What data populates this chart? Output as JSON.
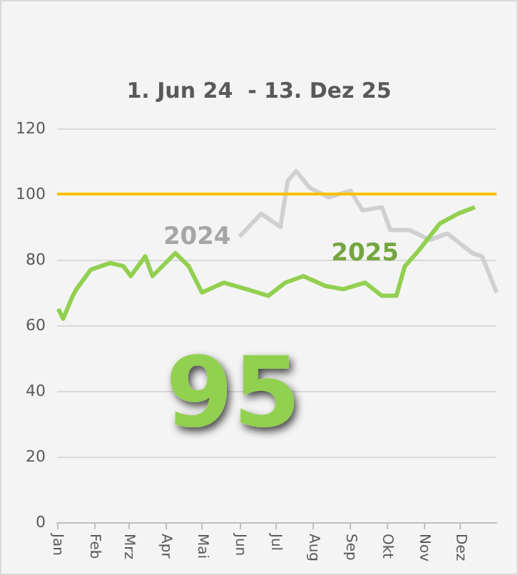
{
  "chart_data": {
    "type": "line",
    "subtitle": "1. Jun 24  - 13. Dez 25",
    "annotations": [
      "95"
    ],
    "xlim": [
      "--01-01",
      "--12-31"
    ],
    "xticks": [
      {
        "value": "--01-01",
        "label": "Jan"
      },
      {
        "value": "--02-01",
        "label": "Feb"
      },
      {
        "value": "--03-01",
        "label": "Mrz"
      },
      {
        "value": "--04-01",
        "label": "Apr"
      },
      {
        "value": "--05-01",
        "label": "Mai"
      },
      {
        "value": "--06-01",
        "label": "Jun"
      },
      {
        "value": "--07-01",
        "label": "Jul"
      },
      {
        "value": "--08-01",
        "label": "Aug"
      },
      {
        "value": "--09-01",
        "label": "Sep"
      },
      {
        "value": "--10-01",
        "label": "Okt"
      },
      {
        "value": "--11-01",
        "label": "Nov"
      },
      {
        "value": "--12-01",
        "label": "Dez"
      }
    ],
    "ylim": [
      0,
      120
    ],
    "yticks": [
      0,
      20,
      40,
      60,
      80,
      100,
      120
    ],
    "grid": "y",
    "legend": false,
    "marker": "none",
    "line_style": "solid",
    "ref_lines": [
      {
        "axis": "y",
        "value": 100,
        "color": "#ffc000"
      }
    ],
    "series": [
      {
        "name": "2024",
        "color": "#d0d0d0",
        "x": [
          "--06-01",
          "--06-19",
          "--07-05",
          "--07-11",
          "--07-18",
          "--07-29",
          "--08-14",
          "--09-01",
          "--09-11",
          "--09-27",
          "--10-04",
          "--10-20",
          "--11-06",
          "--11-20",
          "--12-11",
          "--12-19",
          "--12-31"
        ],
        "values": [
          87,
          94,
          90,
          104,
          107,
          102,
          99,
          101,
          95,
          96,
          89,
          89,
          86,
          88,
          82,
          81,
          70
        ]
      },
      {
        "name": "2025",
        "color": "#92d050",
        "x": [
          "--01-02",
          "--01-06",
          "--01-14",
          "--01-17",
          "--01-29",
          "--02-14",
          "--02-25",
          "--03-03",
          "--03-15",
          "--03-21",
          "--04-09",
          "--04-20",
          "--05-01",
          "--05-19",
          "--06-07",
          "--06-25",
          "--07-09",
          "--07-24",
          "--08-11",
          "--08-26",
          "--09-13",
          "--09-27",
          "--10-09",
          "--10-16",
          "--10-28",
          "--11-14",
          "--11-29",
          "--12-13"
        ],
        "values": [
          65,
          62,
          69,
          71,
          77,
          79,
          78,
          75,
          81,
          75,
          82,
          78,
          70,
          73,
          71,
          69,
          73,
          75,
          72,
          71,
          73,
          69,
          69,
          78,
          83,
          91,
          94,
          96
        ]
      }
    ]
  }
}
